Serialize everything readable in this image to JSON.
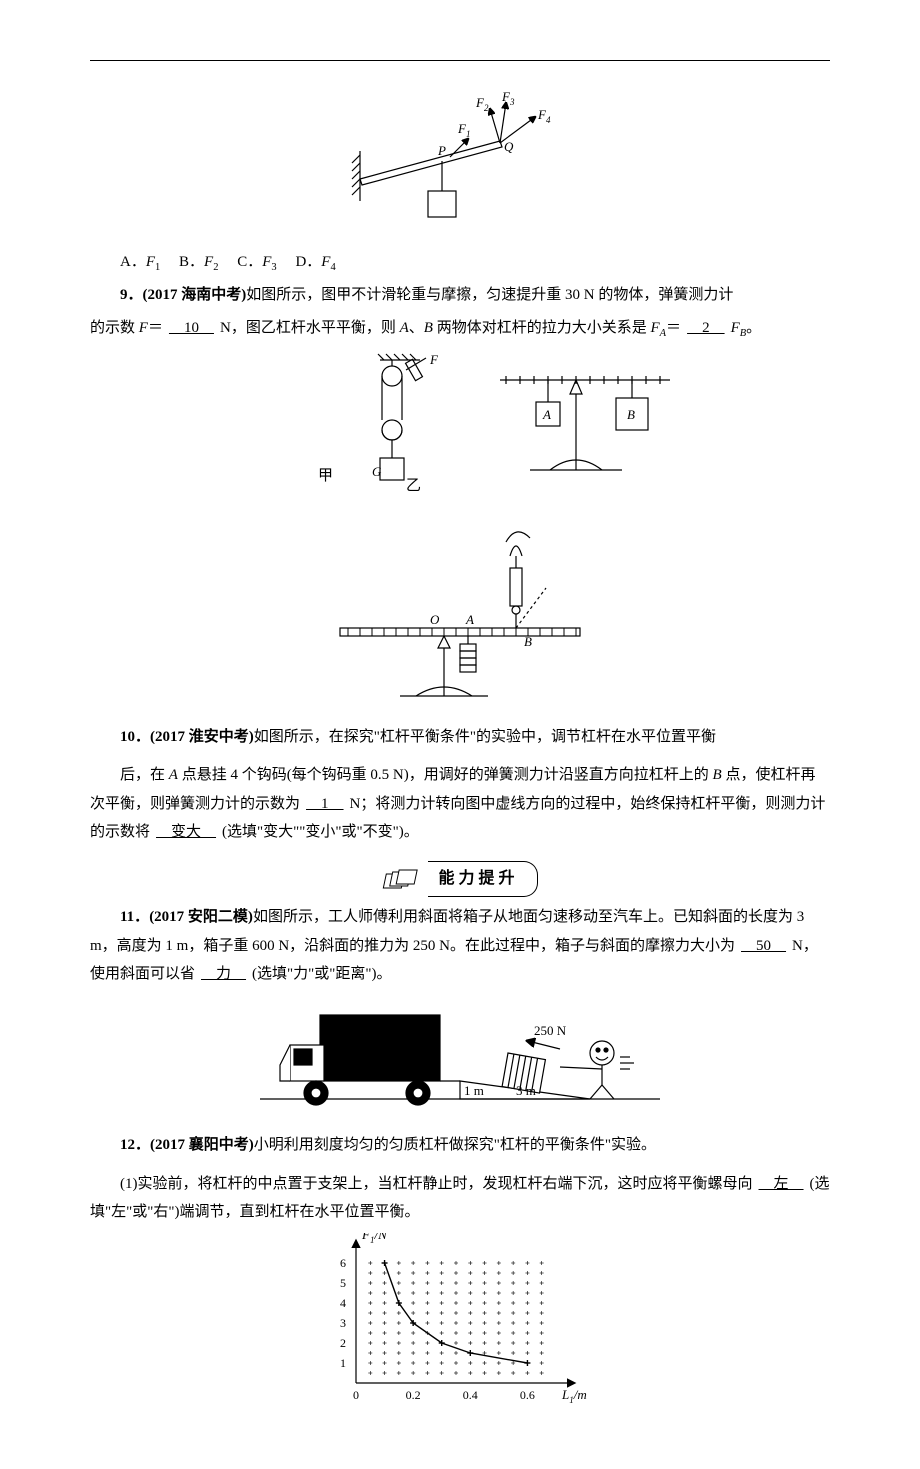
{
  "colors": {
    "text": "#000000",
    "bg": "#ffffff",
    "line": "#000000"
  },
  "fonts": {
    "body_family": "SimSun",
    "body_size_pt": 11,
    "line_height": 1.9
  },
  "fig8": {
    "type": "diagram",
    "labels": {
      "P": "P",
      "Q": "Q",
      "F1": "F",
      "F2": "F",
      "F3": "F",
      "F4": "F"
    },
    "subscripts": {
      "F1": "1",
      "F2": "2",
      "F3": "3",
      "F4": "4"
    },
    "stroke": "#000000",
    "stroke_width": 1.2
  },
  "q8_choices": {
    "A_pre": "A．",
    "A_sym": "F",
    "A_sub": "1",
    "B_pre": "B．",
    "B_sym": "F",
    "B_sub": "2",
    "C_pre": "C．",
    "C_sym": "F",
    "C_sub": "3",
    "D_pre": "D．",
    "D_sym": "F",
    "D_sub": "4"
  },
  "q9": {
    "num": "9．",
    "src": "(2017 海南中考)",
    "t1": "如图所示，图甲不计滑轮重与摩擦，匀速提升重 30 N 的物体，弹簧测力计",
    "t2": "的示数 ",
    "F": "F",
    "eq": "＝",
    "ans1": "　10　",
    "unit": "N",
    "t3": "，图乙杠杆水平平衡，则 ",
    "A": "A",
    "B": "B",
    "t3b": "、",
    "t4": " 两物体对杠杆的拉力大小关系是 ",
    "FA": "F",
    "FAsub": "A",
    "eq2": "＝",
    "ans2": "　2　",
    "FB": "F",
    "FBsub": "B",
    "end": "。"
  },
  "fig9": {
    "type": "diagram",
    "labels": {
      "jia": "甲",
      "yi": "乙",
      "G": "G",
      "F": "F",
      "A": "A",
      "B": "B"
    },
    "stroke": "#000000"
  },
  "fig10top": {
    "type": "diagram",
    "labels": {
      "O": "O",
      "A": "A",
      "B": "B"
    },
    "stroke": "#000000"
  },
  "q10": {
    "num": "10．",
    "src": "(2017 淮安中考)",
    "t1": "如图所示，在探究\"杠杆平衡条件\"的实验中，调节杠杆在水平位置平衡",
    "t2": "后，在 ",
    "A": "A",
    "t3": " 点悬挂 4 个钩码(每个钩码重 0.5 N)，用调好的弹簧测力计沿竖直方向拉杠杆上的 ",
    "B": "B",
    "t4": " 点，使杠杆再次平衡，则弹簧测力计的示数为",
    "ans1": "　1　",
    "unit": "N；",
    "t5": "将测力计转向图中虚线方向的过程中，始终保持杠杆平衡，则测力计的示数将",
    "ans2": "　变大　",
    "t6": "(选填\"变大\"\"变小\"或\"不变\")。"
  },
  "banner": {
    "text": "能力提升"
  },
  "q11": {
    "num": "11．",
    "src": "(2017 安阳二模)",
    "t1": "如图所示，工人师傅利用斜面将箱子从地面匀速移动至汽车上。已知斜面的长度为 3 m，高度为 1 m，箱子重 600 N，沿斜面的推力为 250 N。在此过程中，箱子与斜面的摩擦力大小为",
    "ans1": "　50　",
    "unit": "N",
    "t2": "，使用斜面可以省",
    "ans2": "　力　",
    "t3": "(选填\"力\"或\"距离\")。"
  },
  "fig11": {
    "type": "infographic",
    "labels": {
      "force": "250 N",
      "len": "3 m",
      "h": "1 m"
    },
    "stroke": "#000000",
    "fill_dark": "#000000"
  },
  "q12": {
    "num": "12．",
    "src": "(2017 襄阳中考)",
    "t1": "小明利用刻度均匀的匀质杠杆做探究\"杠杆的平衡条件\"实验。"
  },
  "q12_1": {
    "pre": "(1)",
    "t1": "实验前，将杠杆的中点置于支架上，当杠杆静止时，发现杠杆右端下沉，这时应将平衡螺母向",
    "ans1": "　左　",
    "t2": "(选填\"左\"或\"右\")端调节，直到杠杆在水平位置平衡。"
  },
  "chart12": {
    "type": "line",
    "xlabel": "L",
    "xlabel_sub": "1",
    "xunit": "/m",
    "ylabel": "F",
    "ylabel_sub": "1",
    "yunit": "/N",
    "xlim": [
      0,
      0.7
    ],
    "ylim": [
      0,
      6.5
    ],
    "xticks": [
      0,
      0.2,
      0.4,
      0.6
    ],
    "yticks": [
      1,
      2,
      3,
      4,
      5,
      6
    ],
    "points_x": [
      0.1,
      0.15,
      0.2,
      0.3,
      0.4,
      0.6
    ],
    "points_y": [
      6,
      4,
      3,
      2,
      1.5,
      1
    ],
    "marker": "plus",
    "marker_size": 3,
    "line_color": "#000000",
    "axis_color": "#000000",
    "grid": true,
    "grid_style": "plus-grid",
    "font_size_pt": 10
  }
}
